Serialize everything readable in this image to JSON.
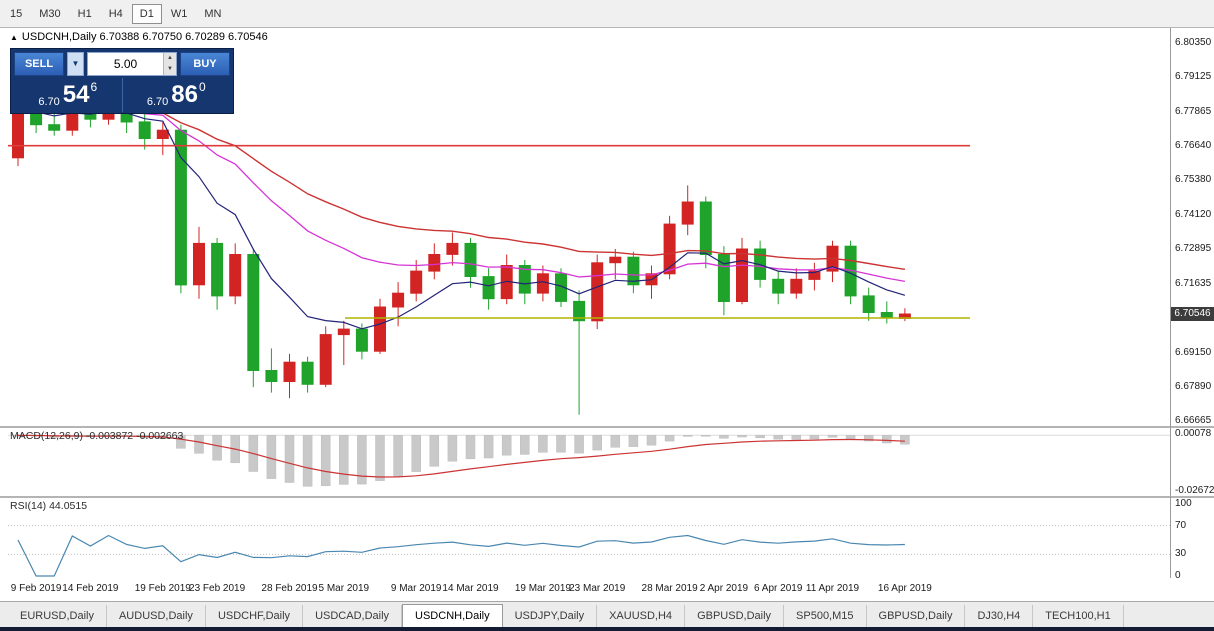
{
  "toolbar": {
    "timeframes": [
      "15",
      "M30",
      "H1",
      "H4",
      "D1",
      "W1",
      "MN"
    ],
    "active_timeframe": "D1"
  },
  "title": {
    "text": "USDCNH,Daily 6.70388 6.70750 6.70289 6.70546"
  },
  "trade_panel": {
    "sell_label": "SELL",
    "buy_label": "BUY",
    "volume": "5.00",
    "sell_price_small": "6.70",
    "sell_price_big": "54",
    "sell_price_sup": "6",
    "buy_price_small": "6.70",
    "buy_price_big": "86",
    "buy_price_sup": "0"
  },
  "tabs": {
    "items": [
      "EURUSD,Daily",
      "AUDUSD,Daily",
      "USDCHF,Daily",
      "USDCAD,Daily",
      "USDCNH,Daily",
      "USDJPY,Daily",
      "XAUUSD,H4",
      "GBPUSD,Daily",
      "SP500,M15",
      "GBPUSD,Daily",
      "DJ30,H4",
      "TECH100,H1"
    ],
    "active": "USDCNH,Daily"
  },
  "chart_data": {
    "type": "candlestick",
    "symbol": "USDCNH",
    "period": "Daily",
    "ohlc": {
      "open": 6.70388,
      "high": 6.7075,
      "low": 6.70289,
      "close": 6.70546
    },
    "current_price": "6.70546",
    "price_axis": [
      "6.80350",
      "6.79125",
      "6.77865",
      "6.76640",
      "6.75380",
      "6.74120",
      "6.72895",
      "6.71635",
      "6.69150",
      "6.67890",
      "6.66665"
    ],
    "candles": [
      [
        6.762,
        6.784,
        6.759,
        6.78
      ],
      [
        6.78,
        6.783,
        6.771,
        6.774
      ],
      [
        6.774,
        6.781,
        6.77,
        6.772
      ],
      [
        6.772,
        6.785,
        6.77,
        6.782
      ],
      [
        6.782,
        6.785,
        6.773,
        6.776
      ],
      [
        6.776,
        6.787,
        6.774,
        6.784
      ],
      [
        6.784,
        6.786,
        6.771,
        6.775
      ],
      [
        6.775,
        6.778,
        6.765,
        6.769
      ],
      [
        6.769,
        6.775,
        6.763,
        6.772
      ],
      [
        6.772,
        6.774,
        6.713,
        6.716
      ],
      [
        6.716,
        6.737,
        6.711,
        6.731
      ],
      [
        6.731,
        6.733,
        6.707,
        6.712
      ],
      [
        6.712,
        6.731,
        6.709,
        6.727
      ],
      [
        6.727,
        6.729,
        6.679,
        6.685
      ],
      [
        6.685,
        6.693,
        6.677,
        6.681
      ],
      [
        6.681,
        6.691,
        6.675,
        6.688
      ],
      [
        6.688,
        6.69,
        6.677,
        6.68
      ],
      [
        6.68,
        6.701,
        6.679,
        6.698
      ],
      [
        6.698,
        6.703,
        6.687,
        6.7
      ],
      [
        6.7,
        6.702,
        6.689,
        6.692
      ],
      [
        6.692,
        6.711,
        6.691,
        6.708
      ],
      [
        6.708,
        6.717,
        6.701,
        6.713
      ],
      [
        6.713,
        6.725,
        6.71,
        6.721
      ],
      [
        6.721,
        6.731,
        6.718,
        6.727
      ],
      [
        6.727,
        6.735,
        6.723,
        6.731
      ],
      [
        6.731,
        6.733,
        6.715,
        6.719
      ],
      [
        6.719,
        6.722,
        6.707,
        6.711
      ],
      [
        6.711,
        6.727,
        6.709,
        6.723
      ],
      [
        6.723,
        6.725,
        6.709,
        6.713
      ],
      [
        6.713,
        6.723,
        6.71,
        6.72
      ],
      [
        6.72,
        6.722,
        6.708,
        6.71
      ],
      [
        6.71,
        6.714,
        6.669,
        6.703
      ],
      [
        6.703,
        6.727,
        6.7,
        6.724
      ],
      [
        6.724,
        6.729,
        6.718,
        6.726
      ],
      [
        6.726,
        6.728,
        6.713,
        6.716
      ],
      [
        6.716,
        6.723,
        6.711,
        6.72
      ],
      [
        6.72,
        6.741,
        6.718,
        6.738
      ],
      [
        6.738,
        6.752,
        6.734,
        6.746
      ],
      [
        6.746,
        6.748,
        6.722,
        6.727
      ],
      [
        6.727,
        6.73,
        6.705,
        6.71
      ],
      [
        6.71,
        6.733,
        6.709,
        6.729
      ],
      [
        6.729,
        6.732,
        6.715,
        6.718
      ],
      [
        6.718,
        6.721,
        6.709,
        6.713
      ],
      [
        6.713,
        6.722,
        6.711,
        6.718
      ],
      [
        6.718,
        6.724,
        6.714,
        6.721
      ],
      [
        6.721,
        6.732,
        6.717,
        6.73
      ],
      [
        6.73,
        6.732,
        6.709,
        6.712
      ],
      [
        6.712,
        6.715,
        6.703,
        6.706
      ],
      [
        6.706,
        6.71,
        6.702,
        6.704
      ],
      [
        6.70388,
        6.7075,
        6.70289,
        6.70546
      ]
    ],
    "hlines": [
      {
        "price": 6.7664,
        "color": "#e03b3b",
        "x1_frac": 0.0,
        "x2_frac": 0.828
      },
      {
        "price": 6.704,
        "color": "#b0b400",
        "x1_frac": 0.29,
        "x2_frac": 0.828
      }
    ],
    "time_axis": [
      {
        "label": "9 Feb 2019",
        "i": 1
      },
      {
        "label": "14 Feb 2019",
        "i": 4
      },
      {
        "label": "19 Feb 2019",
        "i": 8
      },
      {
        "label": "23 Feb 2019",
        "i": 11
      },
      {
        "label": "28 Feb 2019",
        "i": 15
      },
      {
        "label": "5 Mar 2019",
        "i": 18
      },
      {
        "label": "9 Mar 2019",
        "i": 22
      },
      {
        "label": "14 Mar 2019",
        "i": 25
      },
      {
        "label": "19 Mar 2019",
        "i": 29
      },
      {
        "label": "23 Mar 2019",
        "i": 32
      },
      {
        "label": "28 Mar 2019",
        "i": 36
      },
      {
        "label": "2 Apr 2019",
        "i": 39
      },
      {
        "label": "6 Apr 2019",
        "i": 42
      },
      {
        "label": "11 Apr 2019",
        "i": 45
      },
      {
        "label": "16 Apr 2019",
        "i": 49
      }
    ],
    "indicators": {
      "macd": {
        "label": "MACD(12,26,9) -0.003872 -0.002663",
        "axis": [
          {
            "text": "0.00078",
            "v": 0.00078
          },
          {
            "text": "-0.02672",
            "v": -0.02672
          }
        ]
      },
      "rsi": {
        "label": "RSI(14) 44.0515",
        "axis": [
          {
            "text": "100",
            "v": 100
          },
          {
            "text": "70",
            "v": 70
          },
          {
            "text": "30",
            "v": 30
          },
          {
            "text": "0",
            "v": 0
          }
        ]
      }
    },
    "colors": {
      "up_candle": "#d32424",
      "down_candle": "#1fa32a",
      "ma_fast": "#23237a",
      "ma_mid": "#d633d6",
      "ma_slow": "#cc3333",
      "macd_hist": "#c9c9c9",
      "macd_signal": "#cc3333",
      "rsi_line": "#4a87b0"
    }
  }
}
